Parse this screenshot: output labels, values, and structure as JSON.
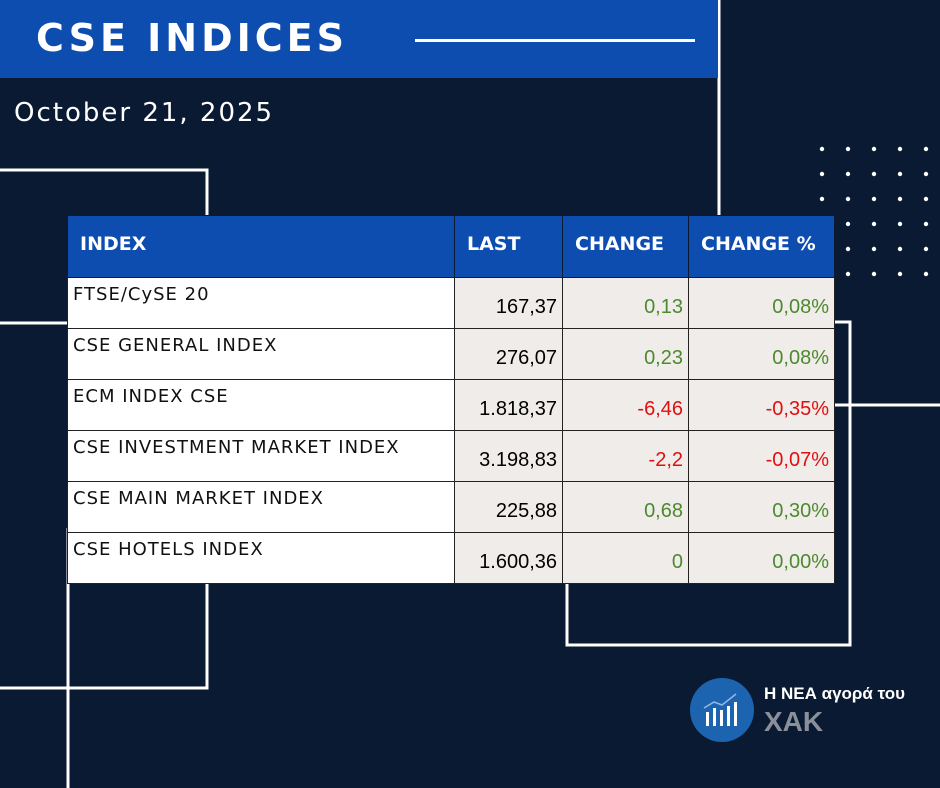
{
  "header": {
    "title": "CSE INDICES",
    "date": "October 21, 2025"
  },
  "table": {
    "columns": [
      "INDEX",
      "LAST",
      "CHANGE",
      "CHANGE %"
    ],
    "rows": [
      {
        "name": "FTSE/CySE 20",
        "last": "167,37",
        "change": "0,13",
        "pct": "0,08%",
        "dir": "pos"
      },
      {
        "name": "CSE GENERAL INDEX",
        "last": "276,07",
        "change": "0,23",
        "pct": "0,08%",
        "dir": "pos"
      },
      {
        "name": "ECM INDEX CSE",
        "last": "1.818,37",
        "change": "-6,46",
        "pct": "-0,35%",
        "dir": "neg"
      },
      {
        "name": "CSE INVESTMENT MARKET INDEX",
        "last": "3.198,83",
        "change": "-2,2",
        "pct": "-0,07%",
        "dir": "neg"
      },
      {
        "name": "CSE MAIN MARKET INDEX",
        "last": "225,88",
        "change": "0,68",
        "pct": "0,30%",
        "dir": "pos"
      },
      {
        "name": "CSE HOTELS INDEX",
        "last": "1.600,36",
        "change": "0",
        "pct": "0,00%",
        "dir": "neu"
      }
    ]
  },
  "logo": {
    "line1": "Η ΝΕΑ αγορά του",
    "line2": "ΧΑΚ"
  },
  "colors": {
    "background": "#0a1a33",
    "accent": "#0d4db0",
    "positive": "#4c8a2e",
    "negative": "#e01010"
  }
}
